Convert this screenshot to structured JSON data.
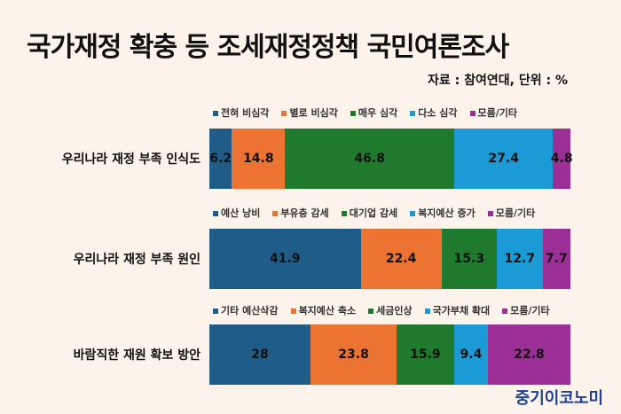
{
  "chart_data": {
    "type": "bar",
    "orientation": "horizontal-stacked-100",
    "title": "국가재정 확충 등 조세재정정책 국민여론조사",
    "source": "자료 : 참여연대, 단위 : %",
    "colors": [
      "#1f5c87",
      "#ec7331",
      "#1f7a2d",
      "#1b9ad6",
      "#9b2f96"
    ],
    "rows": [
      {
        "category": "우리나라 재정 부족 인식도",
        "legend": [
          "전혀 비심각",
          "별로 비심각",
          "매우 심각",
          "다소 심각",
          "모름/기타"
        ],
        "values": [
          6.2,
          14.8,
          46.8,
          27.4,
          4.8
        ]
      },
      {
        "category": "우리나라 재정 부족 원인",
        "legend": [
          "예산 낭비",
          "부유층 감세",
          "대기업 감세",
          "복지예산 증가",
          "모름/기타"
        ],
        "values": [
          41.9,
          22.4,
          15.3,
          12.7,
          7.7
        ]
      },
      {
        "category": "바람직한 재원 확보 방안",
        "legend": [
          "기타 예산삭감",
          "복지예산 축소",
          "세금인상",
          "국가부채 확대",
          "모름/기타"
        ],
        "values": [
          28,
          23.8,
          15.9,
          9.4,
          22.8
        ]
      }
    ]
  },
  "brand": "중기이코노미"
}
